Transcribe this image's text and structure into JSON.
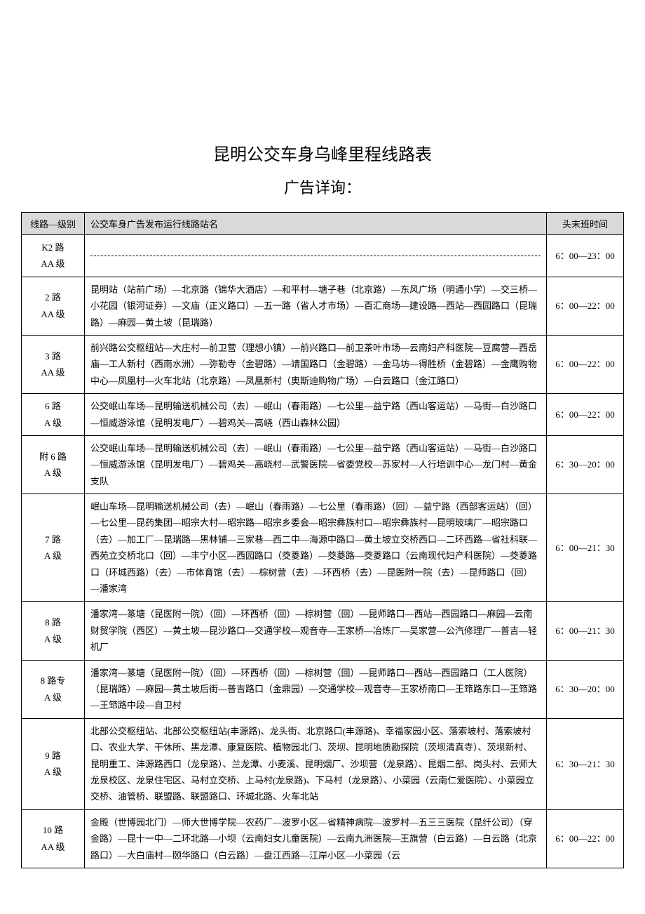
{
  "title_main": "昆明公交车身乌峰里程线路表",
  "title_sub": "广告详询：",
  "headers": {
    "route": "线路—级别",
    "stations": "公交车身广告发布运行线路站名",
    "time": "头末班时间"
  },
  "rows": [
    {
      "route": "K2 路\nAA 级",
      "stations_is_dash": true,
      "stations": "",
      "time": "6：00—23：00"
    },
    {
      "route": "2 路\nAA 级",
      "stations": "昆明站（站前广场）—北京路（锦华大酒店）—和平村—塘子巷（北京路）—东风广场（明通小学）—交三桥—小花园（银河证券）—文庙（正义路口）—五一路（省人才市场）—百汇商场—建设路—西站—西园路口（昆瑞路）—麻园—黄土坡（昆瑞路）",
      "time": "6：00—22：00"
    },
    {
      "route": "3 路\nAA 级",
      "stations": "前兴路公交枢纽站—大庄村—前卫营（理想小镇）—前兴路口—前卫茶叶市场—云南妇产科医院—豆腐营—西岳庙—工人新村（西南水洲）—弥勒寺（金碧路）—靖国路口（金碧路）—金马坊—得胜桥（金碧路）—金鹰购物中心—凤凰村—火车北站（北京路）—凤凰新村（奥斯迪购物广场）—白云路口（金江路口）",
      "time": "6：00—22：00"
    },
    {
      "route": "6 路\nA 级",
      "stations": "公交岷山车场—昆明输送机械公司（去）—岷山（春雨路）—七公里—益宁路（西山客运站）—马街—白沙路口—恒威游泳馆（昆明发电厂）—碧鸡关—高峣（西山森林公园）",
      "time": "6：00—22：00"
    },
    {
      "route": "附 6 路\nA 级",
      "stations": "公交岷山车场—昆明输送机械公司（去）—岷山（春雨路）—七公里—益宁路（西山客运站）—马街—白沙路口—恒威游泳馆（昆明发电厂）—碧鸡关—高峣村—武警医院—省委党校—苏家村—人行培训中心—龙门村—黄金支队",
      "time": "6：30—20：00"
    },
    {
      "route": "7 路\nA 级",
      "stations": "岷山车场—昆明输送机械公司（去）—岷山（春雨路）—七公里（春雨路）（回）—益宁路（西部客运站）（回）—七公里—昆药集团—昭宗大村—昭宗路—昭宗乡委会—昭宗彝族村口—昭宗彝族村—昆明玻璃厂—昭宗路口（去）—加工厂—昆瑞路—黑林铺—三家巷—西二中—海源中路口—黄土坡立交桥西口—二环西路—省社科联—西苑立交桥北口（回）—丰宁小区—西园路口（茭菱路）—茭菱路—茭菱路口（云南现代妇产科医院）—茭菱路口（环城西路）（去）—市体育馆（去）—棕树营（去）—环西桥（去）—昆医附一院（去）—昆师路口（回）—潘家湾",
      "time": "6：00—21：30"
    },
    {
      "route": "8 路\nA 级",
      "stations": "潘家湾—篆塘（昆医附一院）（回）—环西桥（回）—棕树营（回）—昆师路口—西站—西园路口—麻园—云南财贸学院（西区）—黄土坡—昆沙路口—交通学校—观音寺—王家桥—冶炼厂—吴家营—公汽修理厂—普吉—轻机厂",
      "time": "6：00—21：30"
    },
    {
      "route": "8 路专\nA 级",
      "stations": "潘家湾—篆塘（昆医附一院）（回）—环西桥（回）—棕树营（回）—昆师路口—西站—西园路口（工人医院）（昆瑞路）—麻园—黄土坡后街—普吉路口（金鼎园）—交通学校—观音寺—王家桥南口—王筇路东口—王筇路—王筇路中段—自卫村",
      "time": "6：30—20：00"
    },
    {
      "route": "9 路\nA 级",
      "stations": "北部公交枢纽站、北部公交枢纽站(丰源路)、龙头街、北京路口(丰源路)、幸福家园小区、落索坡村、落索坡村口、农业大学、干休所、黑龙潭、康复医院、植物园北门、茨坝、昆明地质勘探院（茨坝清真寺）、茨坝新村、昆明重工、沣源路西口（龙泉路）、兰龙潭、小麦溪、昆明烟厂、沙坝营（龙泉路）、昆烟二部、岗头村、云师大龙泉校区、龙泉住宅区、马村立交桥、上马村(龙泉路)、下马村（龙泉路）、小菜园（云南仁爱医院）、小菜园立交桥、油管桥、联盟路、联盟路口、环城北路、火车北站",
      "time": "6：30—21：30"
    },
    {
      "route": "10 路\nAA 级",
      "stations": "金殿（世博园北门）—师大世博学院—农药厂—波罗小区—省精神病院—波罗村—五三三医院（昆纤公司）（穿金路）—昆十一中—二环北路—小坝（云南妇女儿童医院）—云南九洲医院—王旗营（白云路）—白云路（北京路口）—大白庙村—颐华路口（白云路）—盘江西路—江岸小区—小菜园（云",
      "time": "6：00—22：00"
    }
  ],
  "styles": {
    "header_bg": "#d9d9d9",
    "border_color": "#000000",
    "text_color": "#000000",
    "background_color": "#ffffff",
    "title_fontsize": 24,
    "body_fontsize": 13,
    "line_height": 1.8,
    "col_route_width": 90,
    "col_time_width": 110
  }
}
